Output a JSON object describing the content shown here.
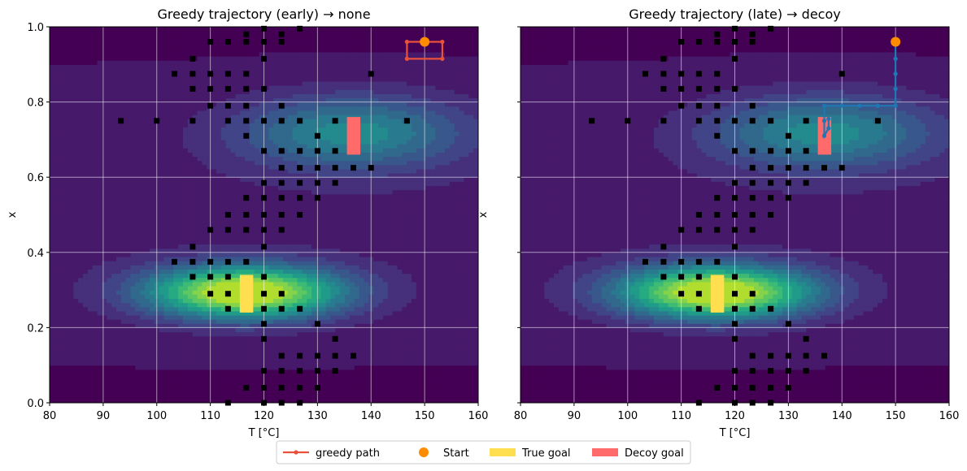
{
  "chart_data": [
    {
      "type": "contour",
      "title": "Greedy trajectory (early) → none",
      "xlabel": "T [°C]",
      "ylabel": "x",
      "xlim": [
        80,
        160
      ],
      "ylim": [
        0.0,
        1.0
      ],
      "xticks": [
        "80",
        "90",
        "100",
        "110",
        "120",
        "130",
        "140",
        "150",
        "160"
      ],
      "yticks": [
        "0.0",
        "0.2",
        "0.4",
        "0.6",
        "0.8",
        "1.0"
      ],
      "grid": true,
      "colormap": "viridis",
      "peaks": [
        {
          "T": 116.5,
          "x": 0.295,
          "height": 1.0,
          "sT": 13.0,
          "sx": 0.05
        },
        {
          "T": 136.5,
          "x": 0.72,
          "height": 0.45,
          "sT": 15.0,
          "sx": 0.07
        }
      ],
      "true_goal": {
        "T": [
          115.5,
          118.0
        ],
        "x": [
          0.24,
          0.34
        ]
      },
      "decoy_goal": {
        "T": [
          135.5,
          138.0
        ],
        "x": [
          0.66,
          0.76
        ]
      },
      "start": {
        "T": 150,
        "x": 0.96
      },
      "path": {
        "name": "greedy path",
        "color": "#e8513b",
        "points": [
          [
            150,
            0.96
          ],
          [
            153.3,
            0.96
          ],
          [
            153.3,
            0.915
          ],
          [
            146.7,
            0.915
          ],
          [
            146.7,
            0.96
          ],
          [
            150,
            0.96
          ]
        ]
      },
      "observations": [
        [
          110,
          0.96
        ],
        [
          113.3,
          0.96
        ],
        [
          116.7,
          0.96
        ],
        [
          120,
          0.96
        ],
        [
          123.3,
          0.96
        ],
        [
          116.7,
          0.98
        ],
        [
          123.3,
          0.98
        ],
        [
          126.7,
          0.995
        ],
        [
          120,
          0.995
        ],
        [
          106.7,
          0.915
        ],
        [
          120,
          0.915
        ],
        [
          103.3,
          0.875
        ],
        [
          106.7,
          0.875
        ],
        [
          110,
          0.875
        ],
        [
          113.3,
          0.875
        ],
        [
          116.7,
          0.875
        ],
        [
          140,
          0.875
        ],
        [
          106.7,
          0.835
        ],
        [
          110,
          0.835
        ],
        [
          113.3,
          0.835
        ],
        [
          116.7,
          0.835
        ],
        [
          120,
          0.835
        ],
        [
          110,
          0.79
        ],
        [
          113.3,
          0.79
        ],
        [
          116.7,
          0.79
        ],
        [
          123.3,
          0.79
        ],
        [
          93.3,
          0.75
        ],
        [
          100,
          0.75
        ],
        [
          106.7,
          0.75
        ],
        [
          113.3,
          0.75
        ],
        [
          116.7,
          0.75
        ],
        [
          120,
          0.75
        ],
        [
          123.3,
          0.75
        ],
        [
          126.7,
          0.75
        ],
        [
          133.3,
          0.75
        ],
        [
          146.7,
          0.75
        ],
        [
          116.7,
          0.71
        ],
        [
          130,
          0.71
        ],
        [
          120,
          0.67
        ],
        [
          123.3,
          0.67
        ],
        [
          126.7,
          0.67
        ],
        [
          130,
          0.67
        ],
        [
          133.3,
          0.67
        ],
        [
          123.3,
          0.625
        ],
        [
          126.7,
          0.625
        ],
        [
          130,
          0.625
        ],
        [
          133.3,
          0.625
        ],
        [
          136.7,
          0.625
        ],
        [
          140,
          0.625
        ],
        [
          120,
          0.585
        ],
        [
          123.3,
          0.585
        ],
        [
          126.7,
          0.585
        ],
        [
          130,
          0.585
        ],
        [
          133.3,
          0.585
        ],
        [
          116.7,
          0.545
        ],
        [
          120,
          0.545
        ],
        [
          123.3,
          0.545
        ],
        [
          126.7,
          0.545
        ],
        [
          130,
          0.545
        ],
        [
          120,
          0.5
        ],
        [
          113.3,
          0.5
        ],
        [
          116.7,
          0.5
        ],
        [
          123.3,
          0.5
        ],
        [
          126.7,
          0.5
        ],
        [
          110,
          0.46
        ],
        [
          113.3,
          0.46
        ],
        [
          116.7,
          0.46
        ],
        [
          120,
          0.46
        ],
        [
          123.3,
          0.46
        ],
        [
          106.7,
          0.415
        ],
        [
          120,
          0.415
        ],
        [
          103.3,
          0.375
        ],
        [
          106.7,
          0.375
        ],
        [
          110,
          0.375
        ],
        [
          113.3,
          0.375
        ],
        [
          116.7,
          0.375
        ],
        [
          106.7,
          0.335
        ],
        [
          110,
          0.335
        ],
        [
          113.3,
          0.335
        ],
        [
          120,
          0.335
        ],
        [
          110,
          0.29
        ],
        [
          113.3,
          0.29
        ],
        [
          120,
          0.29
        ],
        [
          123.3,
          0.29
        ],
        [
          113.3,
          0.25
        ],
        [
          120,
          0.25
        ],
        [
          123.3,
          0.25
        ],
        [
          126.7,
          0.25
        ],
        [
          120,
          0.21
        ],
        [
          130,
          0.21
        ],
        [
          120,
          0.17
        ],
        [
          133.3,
          0.17
        ],
        [
          123.3,
          0.125
        ],
        [
          126.7,
          0.125
        ],
        [
          130,
          0.125
        ],
        [
          133.3,
          0.125
        ],
        [
          136.7,
          0.125
        ],
        [
          120,
          0.085
        ],
        [
          123.3,
          0.085
        ],
        [
          126.7,
          0.085
        ],
        [
          130,
          0.085
        ],
        [
          133.3,
          0.085
        ],
        [
          116.7,
          0.04
        ],
        [
          120,
          0.04
        ],
        [
          123.3,
          0.04
        ],
        [
          126.7,
          0.04
        ],
        [
          130,
          0.04
        ],
        [
          113.3,
          0.0
        ],
        [
          120,
          0.0
        ],
        [
          123.3,
          0.0
        ],
        [
          126.7,
          0.0
        ]
      ]
    },
    {
      "type": "contour",
      "title": "Greedy trajectory (late)  → decoy",
      "xlabel": "T [°C]",
      "ylabel": "x",
      "xlim": [
        80,
        160
      ],
      "ylim": [
        0.0,
        1.0
      ],
      "xticks": [
        "80",
        "90",
        "100",
        "110",
        "120",
        "130",
        "140",
        "150",
        "160"
      ],
      "yticks": [
        "",
        "",
        "",
        "",
        "",
        ""
      ],
      "grid": true,
      "colormap": "viridis",
      "peaks": [
        {
          "T": 116.5,
          "x": 0.295,
          "height": 1.0,
          "sT": 13.0,
          "sx": 0.05
        },
        {
          "T": 136.5,
          "x": 0.72,
          "height": 0.45,
          "sT": 15.0,
          "sx": 0.07
        }
      ],
      "true_goal": {
        "T": [
          115.5,
          118.0
        ],
        "x": [
          0.24,
          0.34
        ]
      },
      "decoy_goal": {
        "T": [
          135.5,
          138.0
        ],
        "x": [
          0.66,
          0.76
        ]
      },
      "start": {
        "T": 150,
        "x": 0.96
      },
      "path": {
        "name": "greedy path",
        "color": "#1f77b4",
        "points": [
          [
            150,
            0.96
          ],
          [
            150,
            0.915
          ],
          [
            150,
            0.875
          ],
          [
            150,
            0.835
          ],
          [
            150,
            0.79
          ],
          [
            146.7,
            0.79
          ],
          [
            143.3,
            0.79
          ],
          [
            140,
            0.79
          ],
          [
            136.7,
            0.79
          ],
          [
            136.7,
            0.75
          ],
          [
            136.7,
            0.71
          ],
          [
            137.5,
            0.73
          ],
          [
            137.5,
            0.755
          ]
        ]
      },
      "observations": [
        [
          110,
          0.96
        ],
        [
          113.3,
          0.96
        ],
        [
          116.7,
          0.96
        ],
        [
          120,
          0.96
        ],
        [
          123.3,
          0.96
        ],
        [
          116.7,
          0.98
        ],
        [
          123.3,
          0.98
        ],
        [
          126.7,
          0.995
        ],
        [
          120,
          0.995
        ],
        [
          106.7,
          0.915
        ],
        [
          120,
          0.915
        ],
        [
          103.3,
          0.875
        ],
        [
          106.7,
          0.875
        ],
        [
          110,
          0.875
        ],
        [
          113.3,
          0.875
        ],
        [
          116.7,
          0.875
        ],
        [
          140,
          0.875
        ],
        [
          106.7,
          0.835
        ],
        [
          110,
          0.835
        ],
        [
          113.3,
          0.835
        ],
        [
          116.7,
          0.835
        ],
        [
          120,
          0.835
        ],
        [
          110,
          0.79
        ],
        [
          113.3,
          0.79
        ],
        [
          116.7,
          0.79
        ],
        [
          123.3,
          0.79
        ],
        [
          93.3,
          0.75
        ],
        [
          100,
          0.75
        ],
        [
          106.7,
          0.75
        ],
        [
          113.3,
          0.75
        ],
        [
          116.7,
          0.75
        ],
        [
          120,
          0.75
        ],
        [
          123.3,
          0.75
        ],
        [
          126.7,
          0.75
        ],
        [
          133.3,
          0.75
        ],
        [
          146.7,
          0.75
        ],
        [
          116.7,
          0.71
        ],
        [
          130,
          0.71
        ],
        [
          120,
          0.67
        ],
        [
          123.3,
          0.67
        ],
        [
          126.7,
          0.67
        ],
        [
          130,
          0.67
        ],
        [
          133.3,
          0.67
        ],
        [
          123.3,
          0.625
        ],
        [
          126.7,
          0.625
        ],
        [
          130,
          0.625
        ],
        [
          133.3,
          0.625
        ],
        [
          136.7,
          0.625
        ],
        [
          140,
          0.625
        ],
        [
          120,
          0.585
        ],
        [
          123.3,
          0.585
        ],
        [
          126.7,
          0.585
        ],
        [
          130,
          0.585
        ],
        [
          133.3,
          0.585
        ],
        [
          116.7,
          0.545
        ],
        [
          120,
          0.545
        ],
        [
          123.3,
          0.545
        ],
        [
          126.7,
          0.545
        ],
        [
          130,
          0.545
        ],
        [
          120,
          0.5
        ],
        [
          113.3,
          0.5
        ],
        [
          116.7,
          0.5
        ],
        [
          123.3,
          0.5
        ],
        [
          126.7,
          0.5
        ],
        [
          110,
          0.46
        ],
        [
          113.3,
          0.46
        ],
        [
          116.7,
          0.46
        ],
        [
          120,
          0.46
        ],
        [
          123.3,
          0.46
        ],
        [
          106.7,
          0.415
        ],
        [
          120,
          0.415
        ],
        [
          103.3,
          0.375
        ],
        [
          106.7,
          0.375
        ],
        [
          110,
          0.375
        ],
        [
          113.3,
          0.375
        ],
        [
          116.7,
          0.375
        ],
        [
          106.7,
          0.335
        ],
        [
          110,
          0.335
        ],
        [
          113.3,
          0.335
        ],
        [
          120,
          0.335
        ],
        [
          110,
          0.29
        ],
        [
          113.3,
          0.29
        ],
        [
          120,
          0.29
        ],
        [
          123.3,
          0.29
        ],
        [
          113.3,
          0.25
        ],
        [
          120,
          0.25
        ],
        [
          123.3,
          0.25
        ],
        [
          126.7,
          0.25
        ],
        [
          120,
          0.21
        ],
        [
          130,
          0.21
        ],
        [
          120,
          0.17
        ],
        [
          133.3,
          0.17
        ],
        [
          123.3,
          0.125
        ],
        [
          126.7,
          0.125
        ],
        [
          130,
          0.125
        ],
        [
          133.3,
          0.125
        ],
        [
          136.7,
          0.125
        ],
        [
          120,
          0.085
        ],
        [
          123.3,
          0.085
        ],
        [
          126.7,
          0.085
        ],
        [
          130,
          0.085
        ],
        [
          133.3,
          0.085
        ],
        [
          116.7,
          0.04
        ],
        [
          120,
          0.04
        ],
        [
          123.3,
          0.04
        ],
        [
          126.7,
          0.04
        ],
        [
          130,
          0.04
        ],
        [
          113.3,
          0.0
        ],
        [
          120,
          0.0
        ],
        [
          123.3,
          0.0
        ],
        [
          126.7,
          0.0
        ]
      ]
    }
  ],
  "legend": {
    "placement": "bottom-center",
    "items": [
      {
        "label": "greedy path",
        "kind": "line",
        "color": "#e8513b"
      },
      {
        "label": "Start",
        "kind": "marker",
        "color": "#ff8c00"
      },
      {
        "label": "True goal",
        "kind": "patch",
        "color": "#ffdf4f"
      },
      {
        "label": "Decoy goal",
        "kind": "patch",
        "color": "#ff6b6b"
      }
    ]
  },
  "colors": {
    "start": "#ff8c00",
    "true_goal": "#ffdf4f",
    "decoy_goal": "#ff6b6b",
    "observation": "#000000",
    "grid": "#ffffff"
  }
}
